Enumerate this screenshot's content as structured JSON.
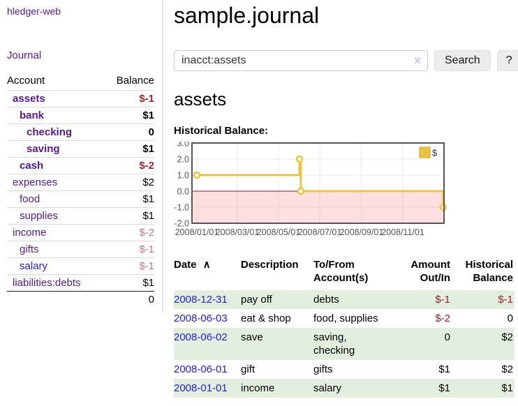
{
  "colors": {
    "link_purple": "#551a8b",
    "link_blue": "#2222dd",
    "date_link_blue": "#2222cc",
    "negative_strong": "#a1252d",
    "negative_soft": "#c2757c",
    "table_negative": "#9c1f26",
    "row_stripe_green": "#e2efdf",
    "chart_series_yellow": "#edc240",
    "chart_negative_fill": "rgba(255,110,110,0.22)",
    "chart_zero_line": "#8b1a1a",
    "chart_border": "#545454",
    "chart_grid": "#e7e7e7",
    "chart_label": "#545454"
  },
  "sidebar": {
    "app_title": "hledger-web",
    "journal_link": "Journal",
    "table": {
      "headers": [
        "Account",
        "Balance"
      ],
      "rows": [
        {
          "account": "assets",
          "balance": "$-1",
          "indent": 1,
          "bold": true,
          "balance_class": "neg-strong"
        },
        {
          "account": "bank",
          "balance": "$1",
          "indent": 2,
          "bold": true,
          "balance_class": ""
        },
        {
          "account": "checking",
          "balance": "0",
          "indent": 3,
          "bold": true,
          "balance_class": ""
        },
        {
          "account": "saving",
          "balance": "$1",
          "indent": 3,
          "bold": true,
          "balance_class": ""
        },
        {
          "account": "cash",
          "balance": "$-2",
          "indent": 2,
          "bold": true,
          "balance_class": "neg-strong"
        },
        {
          "account": "expenses",
          "balance": "$2",
          "indent": 1,
          "bold": false,
          "balance_class": ""
        },
        {
          "account": "food",
          "balance": "$1",
          "indent": 2,
          "bold": false,
          "balance_class": ""
        },
        {
          "account": "supplies",
          "balance": "$1",
          "indent": 2,
          "bold": false,
          "balance_class": ""
        },
        {
          "account": "income",
          "balance": "$-2",
          "indent": 1,
          "bold": false,
          "balance_class": "neg-soft"
        },
        {
          "account": "gifts",
          "balance": "$-1",
          "indent": 2,
          "bold": false,
          "balance_class": "neg-soft"
        },
        {
          "account": "salary",
          "balance": "$-1",
          "indent": 2,
          "bold": false,
          "balance_class": "neg-soft",
          "link_style": "blue"
        },
        {
          "account": "liabilities:debts",
          "balance": "$1",
          "indent": 1,
          "bold": false,
          "balance_class": ""
        }
      ],
      "total": "0"
    }
  },
  "main": {
    "title": "sample.journal",
    "search": {
      "value": "inacct:assets",
      "clear_icon": "✕",
      "button": "Search",
      "help_button": "?"
    },
    "account_heading": "assets",
    "chart_title": "Historical Balance:"
  },
  "chart_data": {
    "type": "line",
    "step": true,
    "title": "Historical Balance",
    "legend": "$",
    "legend_position": "top-right",
    "grid": true,
    "ylim": [
      -2.0,
      3.0
    ],
    "yticks": [
      3.0,
      2.0,
      1.0,
      0.0,
      -1.0,
      -2.0
    ],
    "x_start": "2008-01-01",
    "x_end": "2008-12-31",
    "xtick_labels": [
      "2008/01/01",
      "2008/03/01",
      "2008/05/01",
      "2008/07/01",
      "2008/09/01",
      "2008/11/01"
    ],
    "negative_region_shaded": true,
    "series": [
      {
        "name": "$",
        "points": [
          [
            "2008-01-01",
            1.0
          ],
          [
            "2008-06-01",
            2.0
          ],
          [
            "2008-06-03",
            0.0
          ],
          [
            "2008-12-31",
            -1.0
          ]
        ]
      }
    ]
  },
  "register": {
    "headers": [
      {
        "label": "Date",
        "align": "left",
        "sortable": true
      },
      {
        "label": "Description",
        "align": "left"
      },
      {
        "label": "To/From Account(s)",
        "align": "left"
      },
      {
        "label": "Amount Out/In",
        "align": "right"
      },
      {
        "label": "Historical Balance",
        "align": "right"
      }
    ],
    "sort_indicator": "∧",
    "rows": [
      {
        "date": "2008-12-31",
        "description": "pay off",
        "accounts": "debts",
        "amount": "$-1",
        "balance": "$-1",
        "amount_neg": true,
        "balance_neg": true
      },
      {
        "date": "2008-06-03",
        "description": "eat & shop",
        "accounts": "food, supplies",
        "amount": "$-2",
        "balance": "0",
        "amount_neg": true,
        "balance_neg": false
      },
      {
        "date": "2008-06-02",
        "description": "save",
        "accounts": "saving, checking",
        "amount": "0",
        "balance": "$2",
        "amount_neg": false,
        "balance_neg": false
      },
      {
        "date": "2008-06-01",
        "description": "gift",
        "accounts": "gifts",
        "amount": "$1",
        "balance": "$2",
        "amount_neg": false,
        "balance_neg": false
      },
      {
        "date": "2008-01-01",
        "description": "income",
        "accounts": "salary",
        "amount": "$1",
        "balance": "$1",
        "amount_neg": false,
        "balance_neg": false
      }
    ]
  }
}
